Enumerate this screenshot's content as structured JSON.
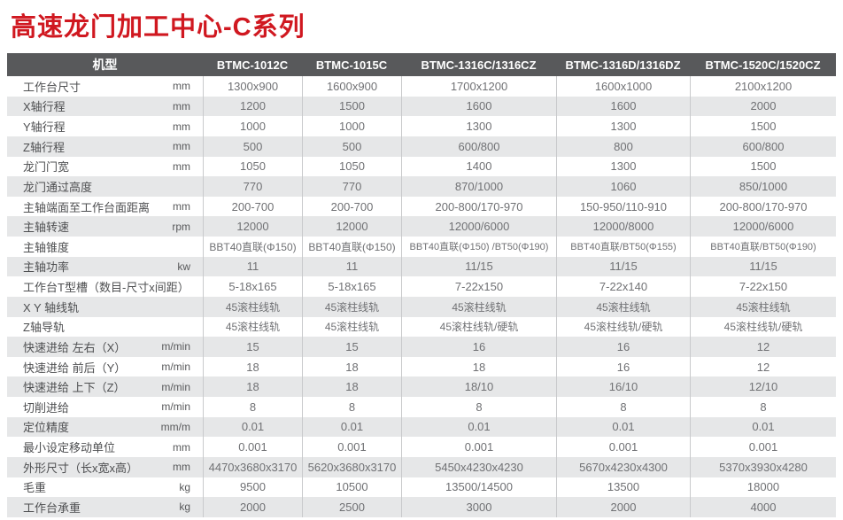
{
  "page_title": "高速龙门加工中心-C系列",
  "colors": {
    "title_red": "#d01820",
    "header_bg": "#58595b",
    "header_text": "#ffffff",
    "stripe_bg": "#e6e7e8",
    "divider": "#c9cacc",
    "label_text": "#4e4f51",
    "value_text": "#707174"
  },
  "table": {
    "header": {
      "model_label": "机型",
      "models": [
        "BTMC-1012C",
        "BTMC-1015C",
        "BTMC-1316C/1316CZ",
        "BTMC-1316D/1316DZ",
        "BTMC-1520C/1520CZ"
      ]
    },
    "rows": [
      {
        "label": "工作台尺寸",
        "unit": "mm",
        "values": [
          "1300x900",
          "1600x900",
          "1700x1200",
          "1600x1000",
          "2100x1200"
        ]
      },
      {
        "label": "X轴行程",
        "unit": "mm",
        "values": [
          "1200",
          "1500",
          "1600",
          "1600",
          "2000"
        ]
      },
      {
        "label": "Y轴行程",
        "unit": "mm",
        "values": [
          "1000",
          "1000",
          "1300",
          "1300",
          "1500"
        ]
      },
      {
        "label": "Z轴行程",
        "unit": "mm",
        "values": [
          "500",
          "500",
          "600/800",
          "800",
          "600/800"
        ]
      },
      {
        "label": "龙门门宽",
        "unit": "mm",
        "values": [
          "1050",
          "1050",
          "1400",
          "1300",
          "1500"
        ]
      },
      {
        "label": "龙门通过高度",
        "unit": "",
        "values": [
          "770",
          "770",
          "870/1000",
          "1060",
          "850/1000"
        ]
      },
      {
        "label": "主轴端面至工作台面距离",
        "unit": "mm",
        "values": [
          "200-700",
          "200-700",
          "200-800/170-970",
          "150-950/110-910",
          "200-800/170-970"
        ]
      },
      {
        "label": "主轴转速",
        "unit": "rpm",
        "values": [
          "12000",
          "12000",
          "12000/6000",
          "12000/8000",
          "12000/6000"
        ]
      },
      {
        "label": "主轴锥度",
        "unit": "",
        "values": [
          "BBT40直联(Φ150)",
          "BBT40直联(Φ150)",
          "BBT40直联(Φ150) /BT50(Φ190)",
          "BBT40直联/BT50(Φ155)",
          "BBT40直联/BT50(Φ190)"
        ]
      },
      {
        "label": "主轴功率",
        "unit": "kw",
        "values": [
          "11",
          "11",
          "11/15",
          "11/15",
          "11/15"
        ]
      },
      {
        "label": "工作台T型槽（数目-尺寸x间距）",
        "unit": "",
        "values": [
          "5-18x165",
          "5-18x165",
          "7-22x150",
          "7-22x140",
          "7-22x150"
        ]
      },
      {
        "label": "X Y 轴线轨",
        "unit": "",
        "values": [
          "45滚柱线轨",
          "45滚柱线轨",
          "45滚柱线轨",
          "45滚柱线轨",
          "45滚柱线轨"
        ]
      },
      {
        "label": "Z轴导轨",
        "unit": "",
        "values": [
          "45滚柱线轨",
          "45滚柱线轨",
          "45滚柱线轨/硬轨",
          "45滚柱线轨/硬轨",
          "45滚柱线轨/硬轨"
        ]
      },
      {
        "label": "快速进给 左右（X）",
        "unit": "m/min",
        "values": [
          "15",
          "15",
          "16",
          "16",
          "12"
        ]
      },
      {
        "label": "快速进给 前后（Y）",
        "unit": "m/min",
        "values": [
          "18",
          "18",
          "18",
          "16",
          "12"
        ]
      },
      {
        "label": "快速进给 上下（Z）",
        "unit": "m/min",
        "values": [
          "18",
          "18",
          "18/10",
          "16/10",
          "12/10"
        ]
      },
      {
        "label": "切削进给",
        "unit": "m/min",
        "values": [
          "8",
          "8",
          "8",
          "8",
          "8"
        ]
      },
      {
        "label": "定位精度",
        "unit": "mm/m",
        "values": [
          "0.01",
          "0.01",
          "0.01",
          "0.01",
          "0.01"
        ]
      },
      {
        "label": "最小设定移动单位",
        "unit": "mm",
        "values": [
          "0.001",
          "0.001",
          "0.001",
          "0.001",
          "0.001"
        ]
      },
      {
        "label": "外形尺寸（长x宽x高）",
        "unit": "mm",
        "values": [
          "4470x3680x3170",
          "5620x3680x3170",
          "5450x4230x4230",
          "5670x4230x4300",
          "5370x3930x4280"
        ]
      },
      {
        "label": "毛重",
        "unit": "kg",
        "values": [
          "9500",
          "10500",
          "13500/14500",
          "13500",
          "18000"
        ]
      },
      {
        "label": "工作台承重",
        "unit": "kg",
        "values": [
          "2000",
          "2500",
          "3000",
          "2000",
          "4000"
        ]
      }
    ]
  }
}
